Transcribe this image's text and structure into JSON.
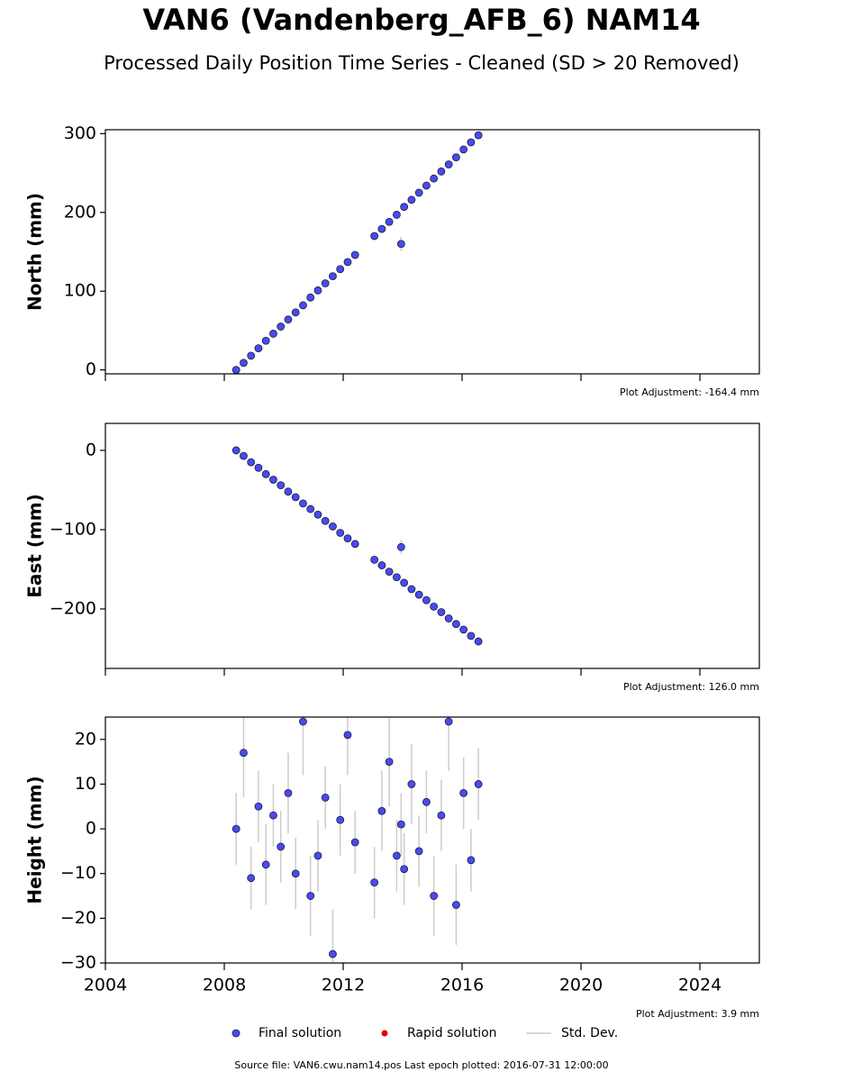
{
  "title": "VAN6 (Vandenberg_AFB_6) NAM14",
  "subtitle": "Processed Daily Position Time Series - Cleaned (SD > 20 Removed)",
  "legend": [
    {
      "name": "Final solution",
      "color": "#4a4af0"
    },
    {
      "name": "Rapid solution",
      "color": "#e00000"
    },
    {
      "name": "Std. Dev.",
      "color": "#cccccc"
    }
  ],
  "source": "Source file: VAN6.cwu.nam14.pos  Last epoch plotted: 2016-07-31 12:00:00",
  "chart_data": [
    {
      "type": "scatter",
      "ylabel": "North (mm)",
      "annotation": "Plot Adjustment: -164.4 mm",
      "x": [
        2008.4,
        2008.65,
        2008.9,
        2009.15,
        2009.4,
        2009.65,
        2009.9,
        2010.15,
        2010.4,
        2010.65,
        2010.9,
        2011.15,
        2011.4,
        2011.65,
        2011.9,
        2012.15,
        2012.4,
        2013.05,
        2013.3,
        2013.55,
        2013.8,
        2013.95,
        2014.05,
        2014.3,
        2014.55,
        2014.8,
        2015.05,
        2015.3,
        2015.55,
        2015.8,
        2016.05,
        2016.3,
        2016.55
      ],
      "series": [
        {
          "name": "Final solution",
          "color": "#4a4af0",
          "values": [
            0,
            9,
            18,
            27.5,
            37,
            46,
            55,
            64,
            73,
            82,
            92,
            101,
            110,
            119,
            128,
            137,
            146,
            170,
            179,
            188,
            197,
            160,
            207,
            216,
            225,
            234,
            243,
            252,
            261,
            270,
            280,
            289,
            298
          ],
          "errors": [
            3,
            3,
            4,
            3,
            3,
            3,
            3,
            3,
            3,
            3,
            4,
            3,
            3,
            3,
            3,
            3,
            4,
            3,
            3,
            3,
            3,
            9,
            3,
            3,
            3,
            3,
            3,
            3,
            3,
            3,
            3,
            3,
            3
          ]
        }
      ],
      "xlim": [
        2004,
        2026
      ],
      "xticks": [
        2004,
        2008,
        2012,
        2016,
        2020,
        2024
      ],
      "ylim": [
        -5,
        305
      ],
      "yticks": [
        0,
        100,
        200,
        300
      ]
    },
    {
      "type": "scatter",
      "ylabel": "East (mm)",
      "annotation": "Plot Adjustment: 126.0 mm",
      "x": [
        2008.4,
        2008.65,
        2008.9,
        2009.15,
        2009.4,
        2009.65,
        2009.9,
        2010.15,
        2010.4,
        2010.65,
        2010.9,
        2011.15,
        2011.4,
        2011.65,
        2011.9,
        2012.15,
        2012.4,
        2013.05,
        2013.3,
        2013.55,
        2013.8,
        2013.95,
        2014.05,
        2014.3,
        2014.55,
        2014.8,
        2015.05,
        2015.3,
        2015.55,
        2015.8,
        2016.05,
        2016.3,
        2016.55
      ],
      "series": [
        {
          "name": "Final solution",
          "color": "#4a4af0",
          "values": [
            0,
            -7,
            -15,
            -22,
            -30,
            -37,
            -44,
            -52,
            -59,
            -67,
            -74,
            -81,
            -89,
            -96,
            -104,
            -111,
            -118,
            -138,
            -145,
            -153,
            -160,
            -122,
            -167,
            -175,
            -182,
            -189,
            -197,
            -204,
            -212,
            -219,
            -226,
            -234,
            -241
          ],
          "errors": [
            3,
            3,
            3,
            3,
            3,
            3,
            3,
            3,
            3,
            3,
            3,
            4,
            3,
            3,
            3,
            3,
            3,
            3,
            3,
            3,
            3,
            9,
            3,
            3,
            3,
            3,
            3,
            3,
            3,
            3,
            3,
            3,
            3
          ]
        }
      ],
      "xlim": [
        2004,
        2026
      ],
      "xticks": [
        2004,
        2008,
        2012,
        2016,
        2020,
        2024
      ],
      "ylim": [
        -275,
        34
      ],
      "yticks": [
        {
          "value": -200,
          "label": "−200"
        },
        {
          "value": -100,
          "label": "−100"
        },
        0
      ]
    },
    {
      "type": "scatter",
      "ylabel": "Height (mm)",
      "annotation": "Plot Adjustment: 3.9 mm",
      "x": [
        2008.4,
        2008.65,
        2008.9,
        2009.15,
        2009.4,
        2009.65,
        2009.9,
        2010.15,
        2010.4,
        2010.65,
        2010.9,
        2011.15,
        2011.4,
        2011.65,
        2011.9,
        2012.15,
        2012.4,
        2013.05,
        2013.3,
        2013.55,
        2013.8,
        2013.95,
        2014.05,
        2014.3,
        2014.55,
        2014.8,
        2015.05,
        2015.3,
        2015.55,
        2015.8,
        2016.05,
        2016.3,
        2016.55
      ],
      "series": [
        {
          "name": "Final solution",
          "color": "#4a4af0",
          "values": [
            0,
            17,
            -11,
            5,
            -8,
            3,
            -4,
            8,
            -10,
            24,
            -15,
            -6,
            7,
            -28,
            2,
            21,
            -3,
            -12,
            4,
            15,
            -6,
            1,
            -9,
            10,
            -5,
            6,
            -15,
            3,
            24,
            -17,
            8,
            -7,
            10
          ],
          "errors": [
            8,
            10,
            7,
            8,
            9,
            7,
            8,
            9,
            8,
            12,
            9,
            8,
            7,
            10,
            8,
            9,
            7,
            8,
            9,
            10,
            8,
            7,
            8,
            9,
            8,
            7,
            9,
            8,
            11,
            9,
            8,
            7,
            8
          ]
        }
      ],
      "xlim": [
        2004,
        2026
      ],
      "xticks": [
        2004,
        2008,
        2012,
        2016,
        2020,
        2024
      ],
      "ylim": [
        -30,
        25
      ],
      "yticks": [
        {
          "value": -30,
          "label": "−30"
        },
        {
          "value": -20,
          "label": "−20"
        },
        {
          "value": -10,
          "label": "−10"
        },
        0,
        10,
        20
      ]
    }
  ]
}
